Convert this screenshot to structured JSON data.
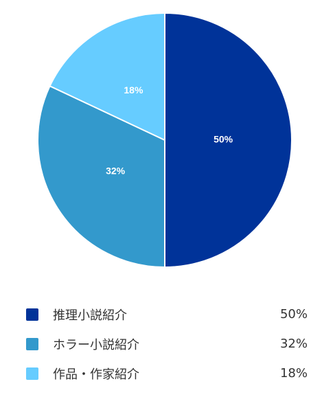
{
  "chart_data": {
    "type": "pie",
    "categories": [
      "推理小説紹介",
      "ホラー小説紹介",
      "作品・作家紹介"
    ],
    "values": [
      50,
      32,
      18
    ],
    "data_labels": [
      "50%",
      "32%",
      "18%"
    ],
    "colors": [
      "#003399",
      "#3399cc",
      "#66ccff"
    ],
    "start_angle": "top",
    "direction": "clockwise",
    "legend_position": "bottom"
  },
  "legend": {
    "items": [
      {
        "label": "推理小説紹介",
        "value": "50%",
        "color": "#003399"
      },
      {
        "label": "ホラー小説紹介",
        "value": "32%",
        "color": "#3399cc"
      },
      {
        "label": "作品・作家紹介",
        "value": "18%",
        "color": "#66ccff"
      }
    ]
  }
}
